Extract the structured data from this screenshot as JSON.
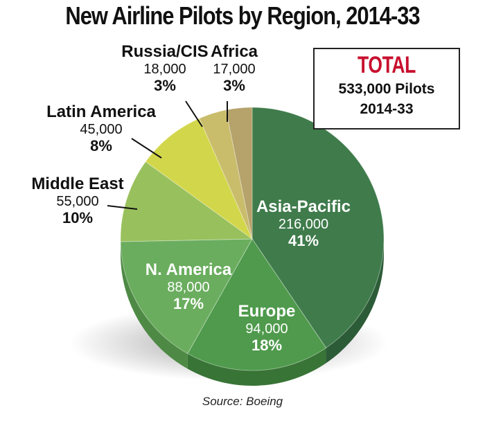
{
  "chart_data": {
    "type": "pie",
    "title": "New Airline Pilots by Region, 2014-33",
    "unit": "pilots",
    "slices": [
      {
        "name": "Asia-Pacific",
        "value": "216,000",
        "percent": "41%",
        "number": 216000,
        "color": "#3f7b4b",
        "side": "#2c5c37",
        "labelColor": "#ffffff"
      },
      {
        "name": "Europe",
        "value": "94,000",
        "percent": "18%",
        "number": 94000,
        "color": "#4f9a4c",
        "side": "#387436",
        "labelColor": "#ffffff"
      },
      {
        "name": "N. America",
        "value": "88,000",
        "percent": "17%",
        "number": 88000,
        "color": "#6aad5e",
        "side": "#4e8a45",
        "labelColor": "#ffffff"
      },
      {
        "name": "Middle East",
        "value": "55,000",
        "percent": "10%",
        "number": 55000,
        "color": "#98c05c",
        "side": "#769a43",
        "labelColor": "#111111"
      },
      {
        "name": "Latin America",
        "value": "45,000",
        "percent": "8%",
        "number": 45000,
        "color": "#d2d64a",
        "side": "#a7ab34",
        "labelColor": "#111111"
      },
      {
        "name": "Russia/CIS",
        "value": "18,000",
        "percent": "3%",
        "number": 18000,
        "color": "#c9bc6b",
        "side": "#9e934f",
        "labelColor": "#111111"
      },
      {
        "name": "Africa",
        "value": "17,000",
        "percent": "3%",
        "number": 17000,
        "color": "#b5a36b",
        "side": "#8c7e50",
        "labelColor": "#111111"
      }
    ],
    "total": {
      "label": "TOTAL",
      "line1": "533,000 Pilots",
      "line2": "2014-33"
    },
    "source": "Source: Boeing"
  }
}
